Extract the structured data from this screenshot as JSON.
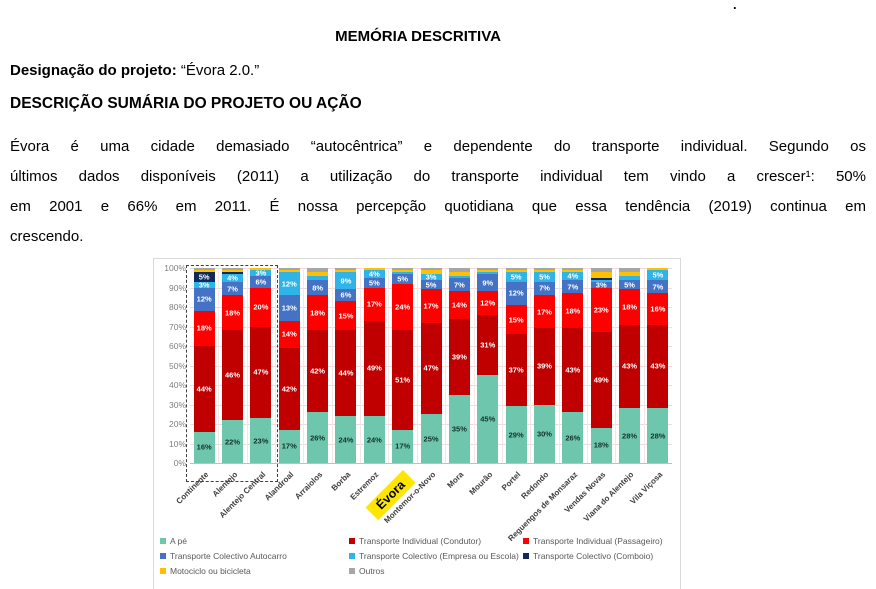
{
  "page": {
    "top_dot": ".",
    "title": "MEMÓRIA DESCRITIVA",
    "project_label": "Designação do projeto:",
    "project_value": "“Évora 2.0.”",
    "section_heading": "DESCRIÇÃO SUMÁRIA DO PROJETO OU AÇÃO",
    "paragraph_lines": [
      "Évora é uma cidade demasiado “autocêntrica” e dependente do transporte individual. Segundo os",
      "últimos dados disponíveis (2011) a utilização do transporte individual tem vindo a crescer¹: 50%",
      "em 2001 e 66% em 2011. É nossa percepção quotidiana  que essa tendência (2019) continua em",
      "crescendo."
    ]
  },
  "chart_data": {
    "type": "bar",
    "stacked": true,
    "unit": "%",
    "categories": [
      "Continente",
      "Alentejo",
      "Alentejo Central",
      "Alandroal",
      "Arraiolos",
      "Borba",
      "Estremoz",
      "Évora",
      "Montemor-o-Novo",
      "Mora",
      "Mourão",
      "Portel",
      "Redondo",
      "Reguengos de Monsaraz",
      "Vendas Novas",
      "Viana do Alentejo",
      "Vila Viçosa"
    ],
    "highlighted_category": "Évora",
    "framed_categories": [
      "Continente",
      "Alentejo",
      "Alentejo Central"
    ],
    "y_axis": {
      "min": 0,
      "max": 100,
      "step": 10,
      "tick_suffix": "%"
    },
    "label_threshold": 3,
    "series": [
      {
        "name": "A pé",
        "color": "#6EC6AC",
        "values": [
          16,
          22,
          23,
          17,
          26,
          24,
          24,
          17,
          25,
          35,
          45,
          29,
          30,
          26,
          18,
          28,
          28
        ]
      },
      {
        "name": "Transporte Individual (Condutor)",
        "color": "#C00000",
        "values": [
          44,
          46,
          47,
          42,
          42,
          44,
          49,
          51,
          47,
          39,
          31,
          37,
          39,
          43,
          49,
          43,
          43
        ]
      },
      {
        "name": "Transporte Individual (Passageiro)",
        "color": "#FE0000",
        "values": [
          18,
          18,
          20,
          14,
          18,
          15,
          17,
          24,
          17,
          14,
          12,
          15,
          17,
          18,
          23,
          18,
          16
        ]
      },
      {
        "name": "Transporte Colectivo Autocarro",
        "color": "#4472C4",
        "values": [
          12,
          7,
          6,
          13,
          8,
          6,
          5,
          5,
          5,
          7,
          9,
          12,
          7,
          7,
          3,
          5,
          7
        ]
      },
      {
        "name": "Transporte Colectivo (Empresa ou Escola)",
        "color": "#2EB4E8",
        "values": [
          3,
          4,
          3,
          12,
          2,
          9,
          4,
          1,
          3,
          1,
          1,
          5,
          5,
          4,
          1,
          2,
          5
        ]
      },
      {
        "name": "Transporte Colectivo (Comboio)",
        "color": "#11295B",
        "values": [
          5,
          1,
          0,
          0,
          0,
          0,
          0,
          0,
          0,
          0,
          0,
          0,
          0,
          0,
          1,
          0,
          0
        ]
      },
      {
        "name": "Motociclo ou bicicleta",
        "color": "#FFC000",
        "show_labels": false,
        "values": [
          1,
          1,
          1,
          1,
          2,
          1,
          1,
          1,
          2,
          2,
          1,
          1,
          1,
          1,
          3,
          2,
          1
        ]
      },
      {
        "name": "Outros",
        "color": "#A6A6A6",
        "show_labels": false,
        "values": [
          1,
          1,
          0,
          1,
          2,
          1,
          0,
          1,
          1,
          2,
          1,
          1,
          1,
          1,
          2,
          2,
          0
        ]
      }
    ]
  }
}
